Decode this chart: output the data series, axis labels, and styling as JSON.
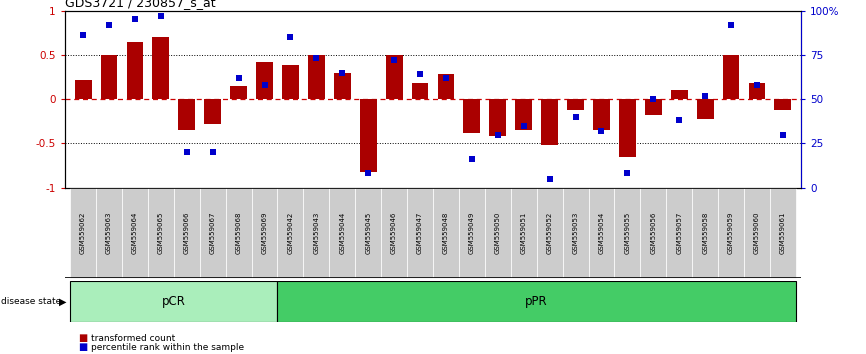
{
  "title": "GDS3721 / 230857_s_at",
  "samples": [
    "GSM559062",
    "GSM559063",
    "GSM559064",
    "GSM559065",
    "GSM559066",
    "GSM559067",
    "GSM559068",
    "GSM559069",
    "GSM559042",
    "GSM559043",
    "GSM559044",
    "GSM559045",
    "GSM559046",
    "GSM559047",
    "GSM559048",
    "GSM559049",
    "GSM559050",
    "GSM559051",
    "GSM559052",
    "GSM559053",
    "GSM559054",
    "GSM559055",
    "GSM559056",
    "GSM559057",
    "GSM559058",
    "GSM559059",
    "GSM559060",
    "GSM559061"
  ],
  "red_bars": [
    0.22,
    0.5,
    0.65,
    0.7,
    -0.35,
    -0.28,
    0.15,
    0.42,
    0.38,
    0.5,
    0.3,
    -0.82,
    0.5,
    0.18,
    0.28,
    -0.38,
    -0.42,
    -0.35,
    -0.52,
    -0.12,
    -0.35,
    -0.65,
    -0.18,
    0.1,
    -0.22,
    0.5,
    0.18,
    -0.12
  ],
  "blue_dots_pct": [
    86,
    92,
    95,
    97,
    20,
    20,
    62,
    58,
    85,
    73,
    65,
    8,
    72,
    64,
    62,
    16,
    30,
    35,
    5,
    40,
    32,
    8,
    50,
    38,
    52,
    92,
    58,
    30
  ],
  "pCR_count": 8,
  "pPR_count": 20,
  "ylim": [
    -1.0,
    1.0
  ],
  "yticks_left": [
    -1,
    -0.5,
    0,
    0.5,
    1
  ],
  "yticks_right_pct": [
    0,
    25,
    50,
    75,
    100
  ],
  "hlines": [
    -0.5,
    0.0,
    0.5
  ],
  "bar_color": "#AA0000",
  "dot_color": "#0000CC",
  "zero_line_color": "#CC0000",
  "pCR_color": "#AAEEBB",
  "pPR_color": "#44CC66",
  "label_bg_color": "#CCCCCC",
  "title_fontsize": 9,
  "tick_fontsize": 7.5,
  "bar_width": 0.65
}
